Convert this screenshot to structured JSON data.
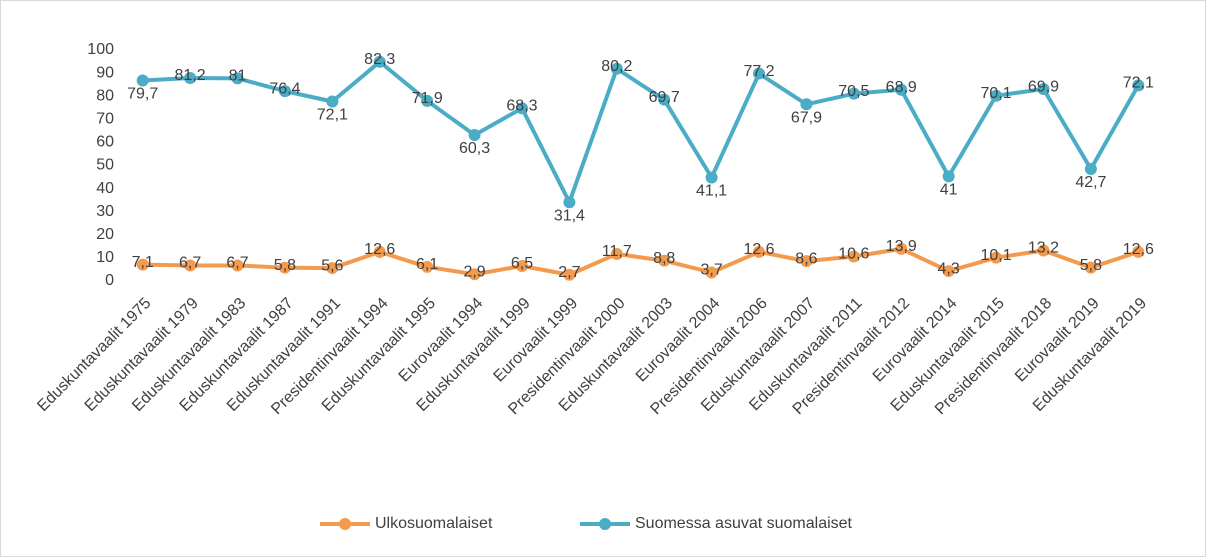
{
  "chart_data": {
    "type": "line",
    "stacked": true,
    "grid": false,
    "legend": "bottom",
    "categories": [
      "Eduskuntavaalit 1975",
      "Eduskuntavaalit 1979",
      "Eduskuntavaalit 1983",
      "Eduskuntavaalit 1987",
      "Eduskuntavaalit 1991",
      "Presidentinvaalit 1994",
      "Eduskuntavaalit 1995",
      "Eurovaalit 1994",
      "Eduskuntavaalit 1999",
      "Eurovaalit 1999",
      "Presidentinvaalit 2000",
      "Eduskuntavaalit 2003",
      "Eurovaalit 2004",
      "Presidentinvaalit 2006",
      "Eduskuntavaalit 2007",
      "Eduskuntavaalit 2011",
      "Presidentinvaalit 2012",
      "Eurovaalit 2014",
      "Eduskuntavaalit 2015",
      "Presidentinvaalit 2018",
      "Eurovaalit 2019",
      "Eduskuntavaalit 2019"
    ],
    "series": [
      {
        "name": "Ulkosuomalaiset",
        "color": "#f39a4c",
        "values": [
          7.1,
          6.7,
          6.7,
          5.8,
          5.6,
          12.6,
          6.1,
          2.9,
          6.5,
          2.7,
          11.7,
          8.8,
          3.7,
          12.6,
          8.6,
          10.6,
          13.9,
          4.3,
          10.1,
          13.2,
          5.8,
          12.6
        ],
        "value_labels": [
          "7,1",
          "6,7",
          "6,7",
          "5,8",
          "5,6",
          "12,6",
          "6,1",
          "2,9",
          "6,5",
          "2,7",
          "11,7",
          "8,8",
          "3,7",
          "12,6",
          "8,6",
          "10,6",
          "13,9",
          "4,3",
          "10,1",
          "13,2",
          "5,8",
          "12,6"
        ]
      },
      {
        "name": "Suomessa asuvat suomalaiset",
        "color": "#4bacc6",
        "values": [
          79.7,
          81.2,
          81,
          76.4,
          72.1,
          82.3,
          71.9,
          60.3,
          68.3,
          31.4,
          80.2,
          69.7,
          41.1,
          77.2,
          67.9,
          70.5,
          68.9,
          41,
          70.1,
          69.9,
          42.7,
          72.1
        ],
        "value_labels": [
          "79,7",
          "81,2",
          "81",
          "76,4",
          "72,1",
          "82,3",
          "71,9",
          "60,3",
          "68,3",
          "31,4",
          "80,2",
          "69,7",
          "41,1",
          "77,2",
          "67,9",
          "70,5",
          "68,9",
          "41",
          "70,1",
          "69,9",
          "42,7",
          "72,1"
        ]
      }
    ],
    "ylim": [
      0,
      100
    ],
    "yticks": [
      0,
      10,
      20,
      30,
      40,
      50,
      60,
      70,
      80,
      90,
      100
    ]
  }
}
